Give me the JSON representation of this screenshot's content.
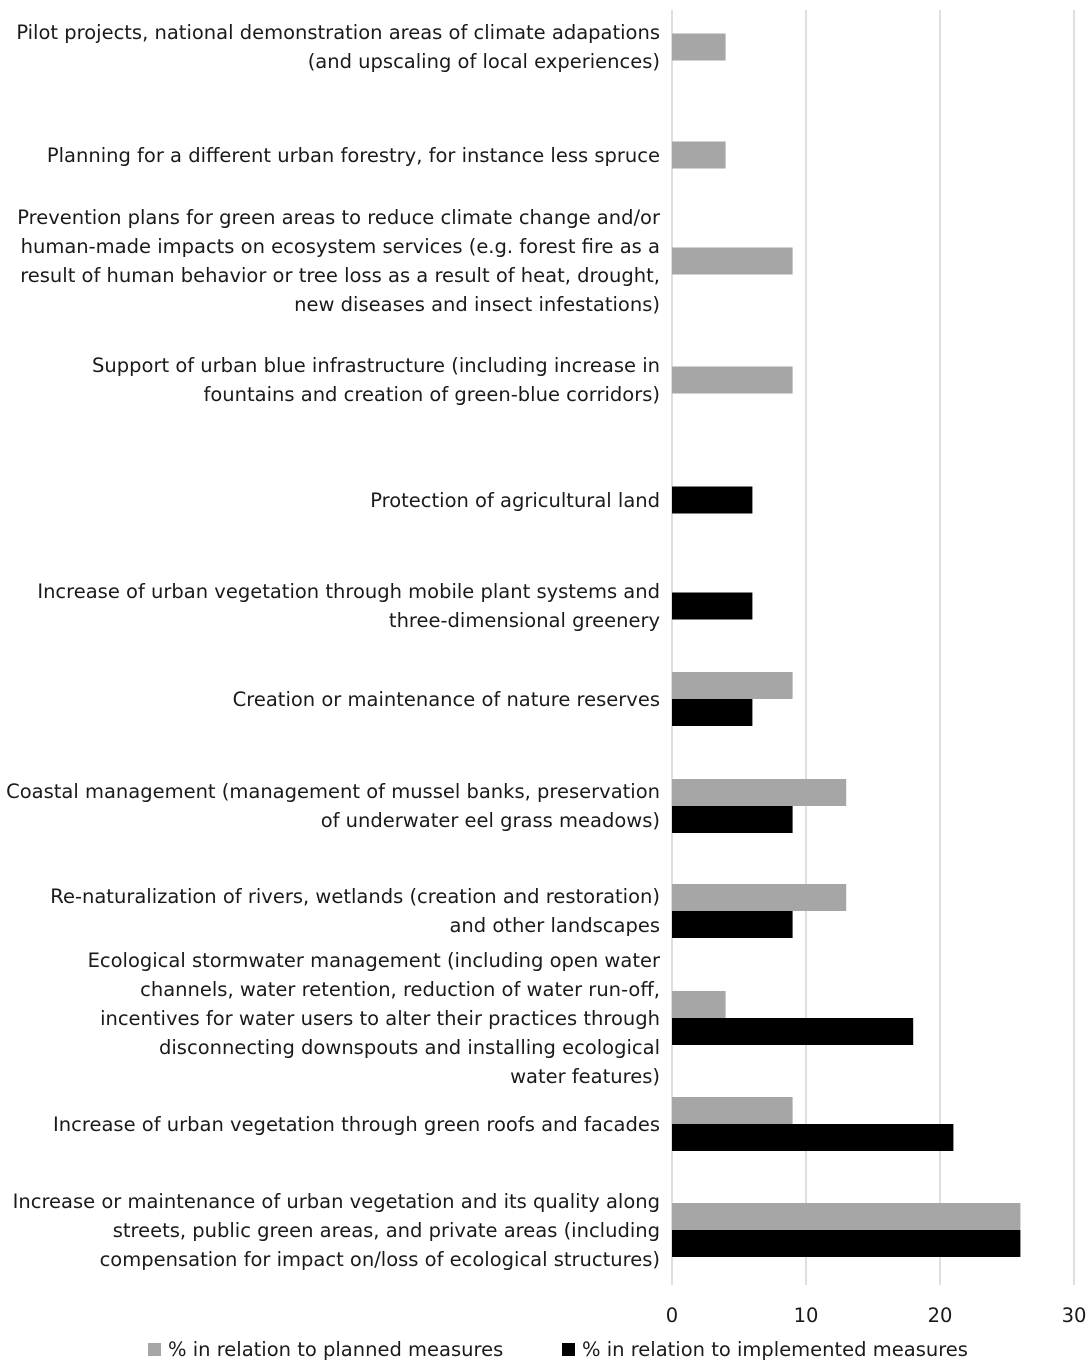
{
  "chart_data": {
    "type": "bar",
    "orientation": "horizontal",
    "categories": [
      "Pilot projects, national demonstration areas of climate adapations\n(and upscaling of local experiences)",
      "Planning for a different urban forestry, for instance less spruce",
      "Prevention plans for green areas to reduce climate change and/or\nhuman-made impacts on ecosystem services (e.g. forest fire as a\nresult of human behavior or tree loss as a result of heat, drought,\nnew diseases and insect infestations)",
      "Support of urban blue infrastructure (including increase in\nfountains and creation of green-blue corridors)",
      "Protection of agricultural land",
      "Increase of urban vegetation through mobile plant systems and\nthree-dimensional greenery",
      "Creation or maintenance of nature reserves",
      "Coastal management (management of mussel banks, preservation\nof underwater eel grass meadows)",
      "Re-naturalization of rivers, wetlands (creation and restoration)\nand other landscapes",
      "Ecological stormwater management (including open water\nchannels, water retention, reduction of water run-off,\nincentives for  water users to alter their practices through\ndisconnecting  downspouts and installing ecological\nwater features)",
      "Increase of urban vegetation through green roofs and facades",
      "Increase or maintenance of urban vegetation and its quality along\nstreets, public green areas, and private areas (including\ncompensation for impact on/loss of ecological structures)"
    ],
    "series": [
      {
        "name": "% in relation to planned measures",
        "color": "#a6a6a6",
        "values": [
          4,
          4,
          9,
          9,
          0,
          0,
          9,
          13,
          13,
          4,
          9,
          26
        ]
      },
      {
        "name": "% in relation to implemented measures",
        "color": "#000000",
        "values": [
          0,
          0,
          0,
          0,
          6,
          6,
          6,
          9,
          9,
          18,
          21,
          26
        ]
      }
    ],
    "xlim": [
      0,
      30
    ],
    "xticks": [
      "0",
      "10",
      "20",
      "30"
    ],
    "grid": "vertical",
    "legend": "bottom",
    "title": "",
    "xlabel": "",
    "ylabel": ""
  }
}
